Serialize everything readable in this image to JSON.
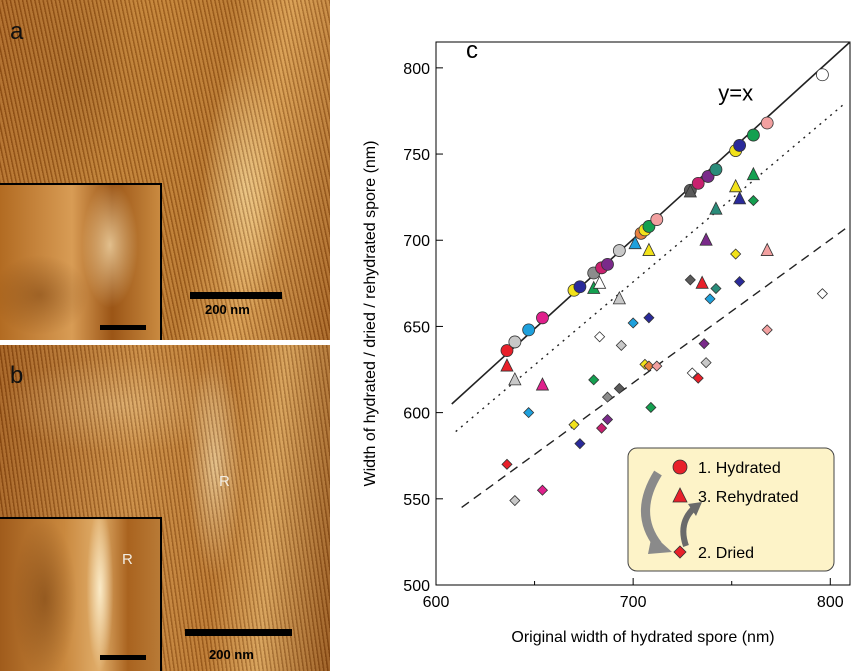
{
  "panel_a": {
    "label": "a",
    "scale_bar_text": "200 nm"
  },
  "panel_b": {
    "label": "b",
    "ridge_label": "R",
    "inset_ridge_label": "R",
    "scale_bar_text": "200 nm"
  },
  "chart_data": {
    "type": "scatter",
    "panel_label": "c",
    "xlabel": "Original width of hydrated spore (nm)",
    "ylabel": "Width of hydrated / dried / rehydrated spore  (nm)",
    "xlim": [
      600,
      810
    ],
    "ylim": [
      500,
      815
    ],
    "x_ticks": [
      600,
      700,
      800
    ],
    "x_tick_labels": [
      "600",
      "700",
      "800"
    ],
    "y_ticks": [
      500,
      550,
      600,
      650,
      700,
      750,
      800
    ],
    "y_tick_labels": [
      "500",
      "550",
      "600",
      "650",
      "700",
      "750",
      "800"
    ],
    "minor_x_ticks": [
      650,
      750
    ],
    "lines": [
      {
        "name": "y=x",
        "style": "solid",
        "x": [
          608,
          810
        ],
        "y": [
          605,
          815
        ]
      },
      {
        "style": "dotted",
        "x": [
          610,
          808
        ],
        "y": [
          589,
          780
        ]
      },
      {
        "style": "dashed",
        "x": [
          613,
          808
        ],
        "y": [
          545,
          707
        ]
      }
    ],
    "annotation": "y=x",
    "legend": {
      "placement": "bottom-right",
      "entries": [
        {
          "marker": "circle",
          "label": "1. Hydrated",
          "color": "#e8202a"
        },
        {
          "marker": "triangle",
          "label": "3. Rehydrated",
          "color": "#e8202a"
        },
        {
          "marker": "diamond",
          "label": "2. Dried",
          "color": "#e8202a"
        }
      ],
      "background": "#fdf3c8"
    },
    "series": [
      {
        "marker": "circle",
        "points": [
          {
            "x": 636,
            "y": 636,
            "color": "#e8202a"
          },
          {
            "x": 640,
            "y": 641,
            "color": "#c8c8c8"
          },
          {
            "x": 647,
            "y": 648,
            "color": "#1ea0dc"
          },
          {
            "x": 654,
            "y": 655,
            "color": "#e0208c"
          },
          {
            "x": 670,
            "y": 671,
            "color": "#f2e21a"
          },
          {
            "x": 673,
            "y": 673,
            "color": "#2a2a9a"
          },
          {
            "x": 680,
            "y": 681,
            "color": "#8c8c8c"
          },
          {
            "x": 684,
            "y": 684,
            "color": "#c8206e"
          },
          {
            "x": 687,
            "y": 686,
            "color": "#7a2a8a"
          },
          {
            "x": 693,
            "y": 694,
            "color": "#c8c8c8"
          },
          {
            "x": 704,
            "y": 704,
            "color": "#e88040"
          },
          {
            "x": 706,
            "y": 706,
            "color": "#f2e21a"
          },
          {
            "x": 708,
            "y": 708,
            "color": "#14a050"
          },
          {
            "x": 712,
            "y": 712,
            "color": "#f2a0a0"
          },
          {
            "x": 729,
            "y": 729,
            "color": "#5a5a5a"
          },
          {
            "x": 733,
            "y": 733,
            "color": "#c8206e"
          },
          {
            "x": 738,
            "y": 737,
            "color": "#7a2a8a"
          },
          {
            "x": 742,
            "y": 741,
            "color": "#2a8c7a"
          },
          {
            "x": 752,
            "y": 752,
            "color": "#f2e21a"
          },
          {
            "x": 754,
            "y": 755,
            "color": "#2a2a9a"
          },
          {
            "x": 761,
            "y": 761,
            "color": "#14a050"
          },
          {
            "x": 768,
            "y": 768,
            "color": "#f2a0a0"
          },
          {
            "x": 796,
            "y": 796,
            "color": "#ffffff"
          }
        ]
      },
      {
        "marker": "triangle",
        "points": [
          {
            "x": 636,
            "y": 627,
            "color": "#e8202a"
          },
          {
            "x": 640,
            "y": 619,
            "color": "#c8c8c8"
          },
          {
            "x": 654,
            "y": 616,
            "color": "#e0208c"
          },
          {
            "x": 680,
            "y": 672,
            "color": "#14a050"
          },
          {
            "x": 683,
            "y": 675,
            "color": "#ffffff"
          },
          {
            "x": 693,
            "y": 666,
            "color": "#c8c8c8"
          },
          {
            "x": 701,
            "y": 698,
            "color": "#1ea0dc"
          },
          {
            "x": 708,
            "y": 694,
            "color": "#f2e21a"
          },
          {
            "x": 729,
            "y": 728,
            "color": "#5a5a5a"
          },
          {
            "x": 735,
            "y": 675,
            "color": "#e8202a"
          },
          {
            "x": 737,
            "y": 700,
            "color": "#7a2a8a"
          },
          {
            "x": 742,
            "y": 718,
            "color": "#2a8c7a"
          },
          {
            "x": 752,
            "y": 731,
            "color": "#f2e21a"
          },
          {
            "x": 754,
            "y": 724,
            "color": "#2a2a9a"
          },
          {
            "x": 761,
            "y": 738,
            "color": "#14a050"
          },
          {
            "x": 768,
            "y": 694,
            "color": "#f2a0a0"
          }
        ]
      },
      {
        "marker": "diamond",
        "points": [
          {
            "x": 636,
            "y": 570,
            "color": "#e8202a"
          },
          {
            "x": 640,
            "y": 549,
            "color": "#c8c8c8"
          },
          {
            "x": 647,
            "y": 600,
            "color": "#1ea0dc"
          },
          {
            "x": 654,
            "y": 555,
            "color": "#e0208c"
          },
          {
            "x": 670,
            "y": 593,
            "color": "#f2e21a"
          },
          {
            "x": 673,
            "y": 582,
            "color": "#2a2a9a"
          },
          {
            "x": 680,
            "y": 619,
            "color": "#14a050"
          },
          {
            "x": 683,
            "y": 644,
            "color": "#ffffff"
          },
          {
            "x": 684,
            "y": 591,
            "color": "#c8206e"
          },
          {
            "x": 687,
            "y": 609,
            "color": "#8c8c8c"
          },
          {
            "x": 687,
            "y": 596,
            "color": "#7a2a8a"
          },
          {
            "x": 693,
            "y": 614,
            "color": "#5a5a5a"
          },
          {
            "x": 694,
            "y": 639,
            "color": "#c8c8c8"
          },
          {
            "x": 700,
            "y": 652,
            "color": "#1ea0dc"
          },
          {
            "x": 706,
            "y": 628,
            "color": "#f2e21a"
          },
          {
            "x": 708,
            "y": 627,
            "color": "#e88040"
          },
          {
            "x": 708,
            "y": 655,
            "color": "#2a2a9a"
          },
          {
            "x": 709,
            "y": 603,
            "color": "#14a050"
          },
          {
            "x": 712,
            "y": 627,
            "color": "#f2a0a0"
          },
          {
            "x": 729,
            "y": 677,
            "color": "#5a5a5a"
          },
          {
            "x": 730,
            "y": 623,
            "color": "#ffffff"
          },
          {
            "x": 733,
            "y": 620,
            "color": "#e8202a"
          },
          {
            "x": 736,
            "y": 640,
            "color": "#7a2a8a"
          },
          {
            "x": 737,
            "y": 629,
            "color": "#c8c8c8"
          },
          {
            "x": 739,
            "y": 666,
            "color": "#1ea0dc"
          },
          {
            "x": 742,
            "y": 672,
            "color": "#2a8c7a"
          },
          {
            "x": 752,
            "y": 692,
            "color": "#f2e21a"
          },
          {
            "x": 754,
            "y": 676,
            "color": "#2a2a9a"
          },
          {
            "x": 761,
            "y": 723,
            "color": "#14a050"
          },
          {
            "x": 768,
            "y": 648,
            "color": "#f2a0a0"
          },
          {
            "x": 796,
            "y": 669,
            "color": "#ffffff"
          }
        ]
      }
    ]
  }
}
